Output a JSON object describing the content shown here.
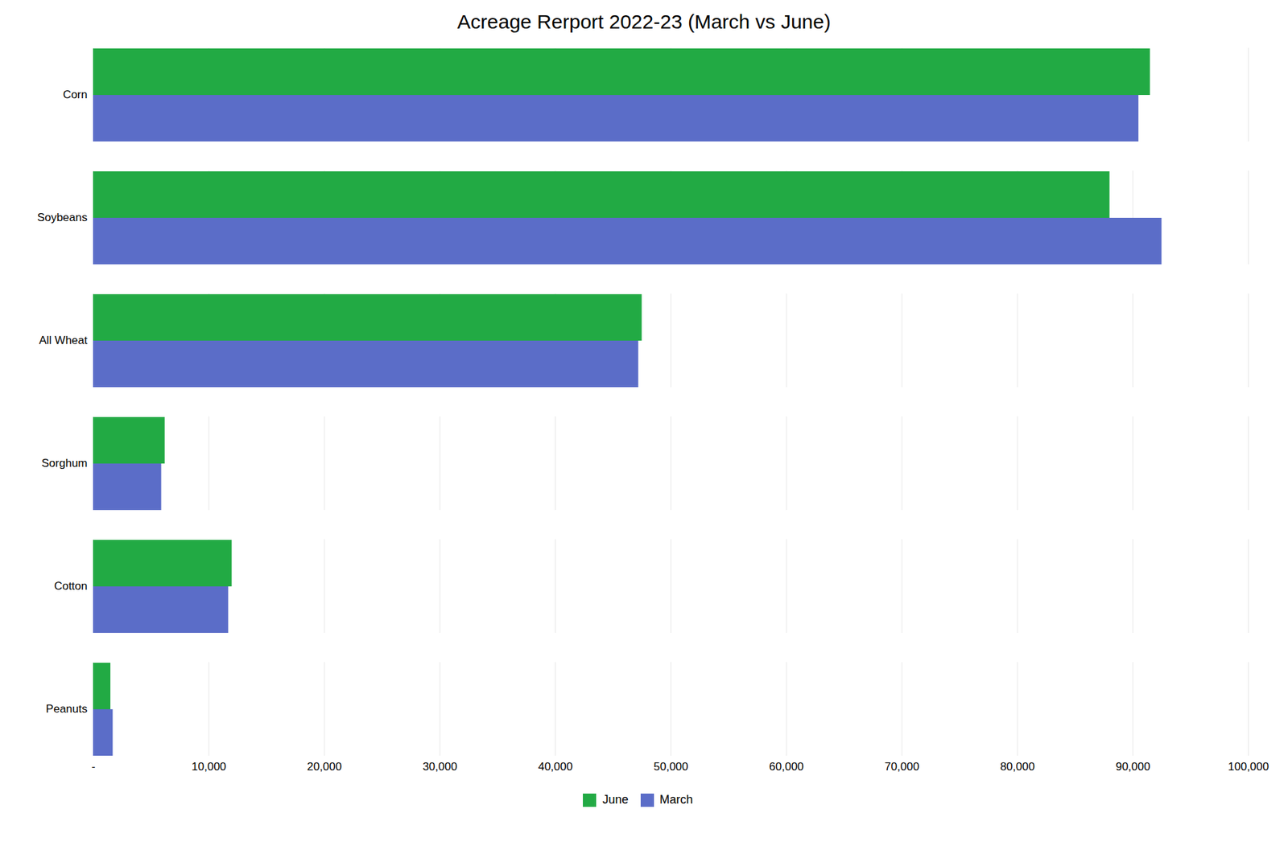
{
  "chart_data": {
    "type": "bar",
    "orientation": "horizontal",
    "title": "Acreage Rerport 2022-23 (March vs June)",
    "categories": [
      "Corn",
      "Soybeans",
      "All Wheat",
      "Sorghum",
      "Cotton",
      "Peanuts"
    ],
    "series": [
      {
        "name": "June",
        "color": "#22AA44",
        "values": [
          91500,
          88000,
          47500,
          6200,
          12000,
          1500
        ]
      },
      {
        "name": "March",
        "color": "#5B6DC8",
        "values": [
          90500,
          92500,
          47200,
          5900,
          11700,
          1700
        ]
      }
    ],
    "xlim": [
      0,
      100000
    ],
    "xticks": [
      {
        "value": 0,
        "label": "-"
      },
      {
        "value": 10000,
        "label": "10,000"
      },
      {
        "value": 20000,
        "label": "20,000"
      },
      {
        "value": 30000,
        "label": "30,000"
      },
      {
        "value": 40000,
        "label": "40,000"
      },
      {
        "value": 50000,
        "label": "50,000"
      },
      {
        "value": 60000,
        "label": "60,000"
      },
      {
        "value": 70000,
        "label": "70,000"
      },
      {
        "value": 80000,
        "label": "80,000"
      },
      {
        "value": 90000,
        "label": "90,000"
      },
      {
        "value": 100000,
        "label": "100,000"
      }
    ],
    "grid": true,
    "legend": "bottom"
  }
}
